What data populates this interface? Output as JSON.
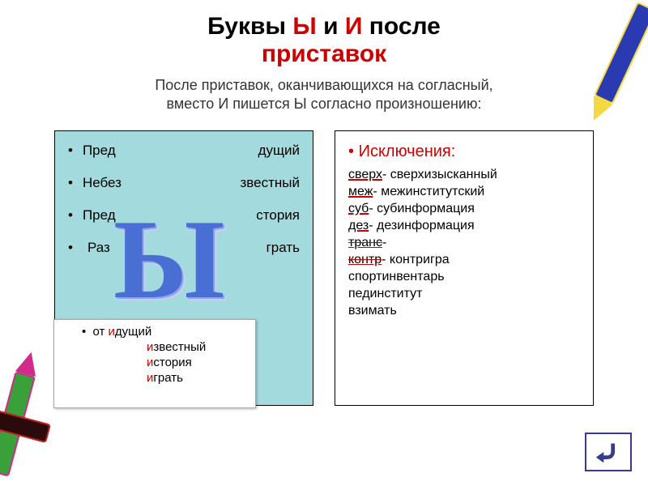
{
  "title": {
    "p1": "Буквы ",
    "y": "Ы",
    "p2": " и ",
    "i": "И",
    "p3": " после ",
    "p4": "приставок"
  },
  "subtitle_l1": "После приставок, оканчивающихся на согласный,",
  "subtitle_l2": "вместо И пишется Ы согласно произношению:",
  "left": {
    "big": "Ы",
    "rows": [
      {
        "prefix": "Пред",
        "ending": "дущий"
      },
      {
        "prefix": "Небез",
        "ending": "звестный"
      },
      {
        "prefix": "Пред",
        "ending": "стория"
      },
      {
        "prefix": "Раз",
        "ending": "грать"
      }
    ],
    "overlay": {
      "first": {
        "pre": "от ",
        "i": "и",
        "rest": "дущий"
      },
      "items": [
        {
          "i": "и",
          "rest": "звестный"
        },
        {
          "i": "и",
          "rest": "стория"
        },
        {
          "i": "и",
          "rest": "грать"
        }
      ]
    }
  },
  "right": {
    "title": "Исключения:",
    "bullet": "•",
    "lines": [
      {
        "pre": "сверх",
        "dash": "-",
        "strike": false,
        "word": "сверхизысканный"
      },
      {
        "pre": "меж",
        "dash": "-",
        "strike": false,
        "word": "межинститутский"
      },
      {
        "pre": "суб",
        "dash": "-",
        "strike": false,
        "word": "субинформация"
      },
      {
        "pre": "дез",
        "dash": "-",
        "strike": false,
        "word": "дезинформация"
      },
      {
        "pre": "транс",
        "dash": "-",
        "strike": true,
        "word": ""
      },
      {
        "pre": "контр",
        "dash": "-",
        "strike": true,
        "word": "контригра"
      },
      {
        "pre": "",
        "dash": "",
        "strike": false,
        "word": "спортинвентарь"
      },
      {
        "pre": "",
        "dash": "",
        "strike": false,
        "word": "пединститут"
      },
      {
        "pre": "",
        "dash": "",
        "strike": false,
        "word": "взимать"
      }
    ]
  }
}
